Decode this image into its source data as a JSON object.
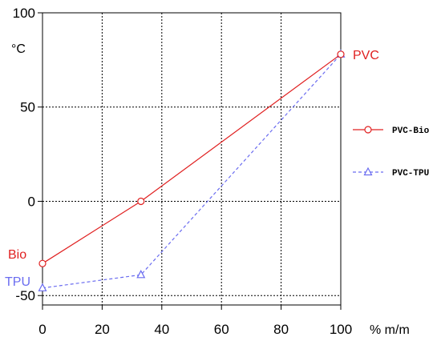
{
  "chart_data": {
    "type": "line",
    "x_ticks": [
      "0",
      "20",
      "40",
      "60",
      "80",
      "100"
    ],
    "y_ticks": [
      "100",
      "50",
      "0",
      "-50"
    ],
    "xlim": [
      0,
      100
    ],
    "ylim": [
      -50,
      100
    ],
    "x_unit": "% m/m",
    "y_unit": "°C",
    "grid": true,
    "legend_position": "right",
    "series": [
      {
        "name": "PVC-Bio",
        "color": "#e02020",
        "line_style": "solid",
        "marker": "circle",
        "end_label_left": "Bio",
        "end_label_right": "PVC",
        "points": [
          {
            "x": 0,
            "y": -33
          },
          {
            "x": 33,
            "y": 0
          },
          {
            "x": 100,
            "y": 78
          }
        ]
      },
      {
        "name": "PVC-TPU",
        "color": "#6a6cf0",
        "line_style": "dashed",
        "marker": "triangle",
        "end_label_left": "TPU",
        "points": [
          {
            "x": 0,
            "y": -46
          },
          {
            "x": 33,
            "y": -39
          },
          {
            "x": 100,
            "y": 78
          }
        ]
      }
    ]
  }
}
